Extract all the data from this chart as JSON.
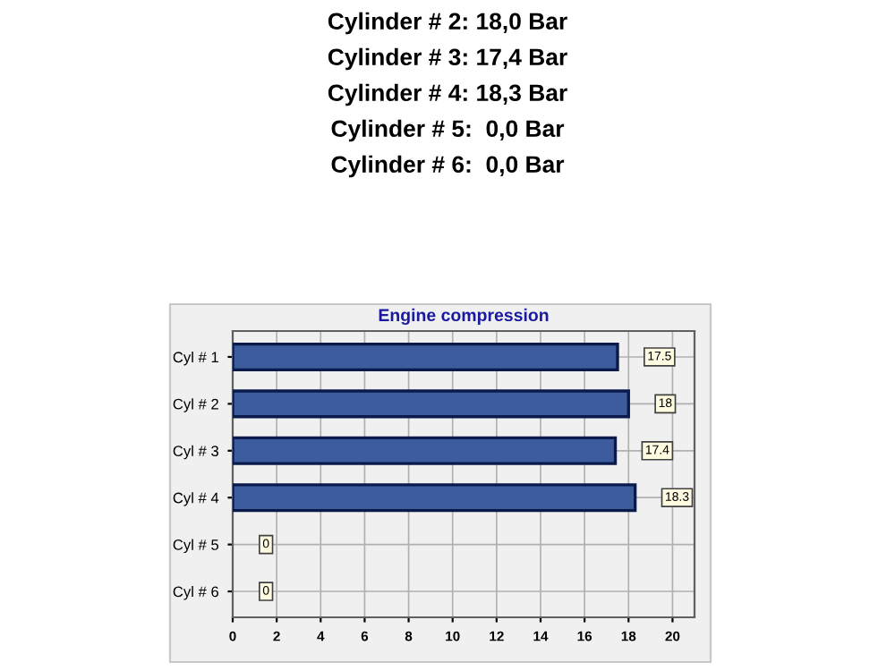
{
  "chart_data": {
    "type": "bar",
    "orientation": "horizontal",
    "title": "Engine compression",
    "categories": [
      "Cyl # 1",
      "Cyl # 2",
      "Cyl # 3",
      "Cyl # 4",
      "Cyl # 5",
      "Cyl # 6"
    ],
    "values": [
      17.5,
      18,
      17.4,
      18.3,
      0,
      0
    ],
    "color": "#3d5c9e",
    "xlim": [
      0,
      21
    ],
    "xticks": [
      0,
      2,
      4,
      6,
      8,
      10,
      12,
      14,
      16,
      18,
      20
    ],
    "grid": true,
    "data_labels": true,
    "annotations": [
      "Cylinder # 2: 18,0 Bar",
      "Cylinder # 3: 17,4 Bar",
      "Cylinder # 4: 18,3 Bar",
      "Cylinder # 5:  0,0 Bar",
      "Cylinder # 6:  0,0 Bar"
    ]
  }
}
